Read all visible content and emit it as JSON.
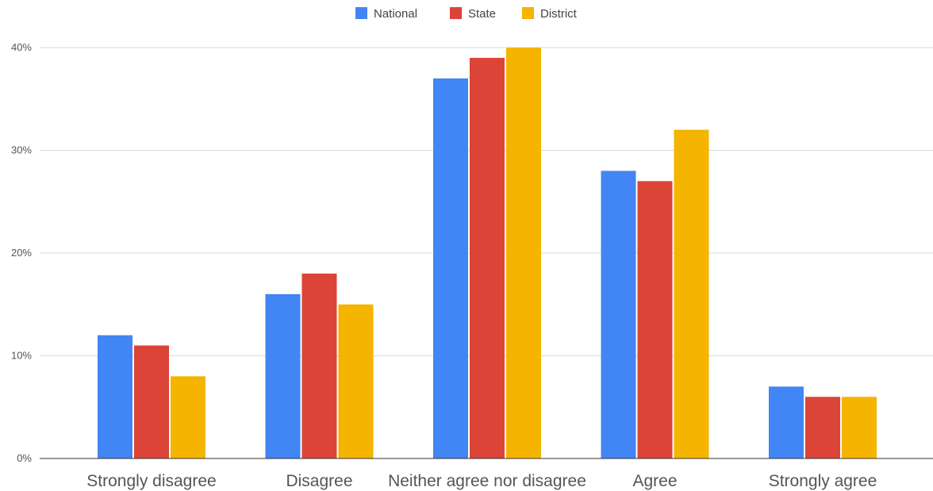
{
  "chart_data": {
    "type": "bar",
    "categories": [
      "Strongly disagree",
      "Disagree",
      "Neither agree nor disagree",
      "Agree",
      "Strongly agree"
    ],
    "series": [
      {
        "name": "National",
        "color": "#4285f4",
        "values": [
          12,
          16,
          37,
          28,
          7
        ]
      },
      {
        "name": "State",
        "color": "#db4437",
        "values": [
          11,
          18,
          39,
          27,
          6
        ]
      },
      {
        "name": "District",
        "color": "#f4b400",
        "values": [
          8,
          15,
          40,
          32,
          6
        ]
      }
    ],
    "y_ticks": [
      "0%",
      "10%",
      "20%",
      "30%",
      "40%"
    ],
    "ylim": [
      0,
      40
    ],
    "y_unit": "%",
    "grid": true,
    "legend_position": "top-center",
    "title": "",
    "xlabel": "",
    "ylabel": ""
  }
}
